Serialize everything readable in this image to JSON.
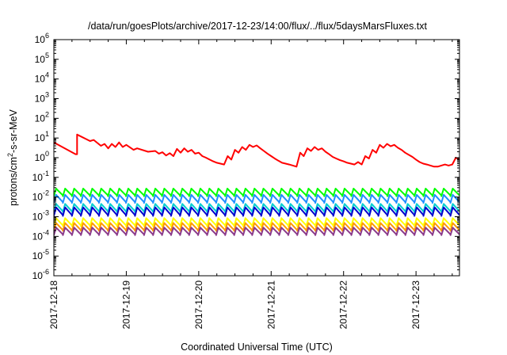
{
  "chart_data": {
    "type": "line",
    "title": "/data/run/goesPlots/archive/2017-12-23/14:00/flux/../flux/5daysMarsFluxes.txt",
    "xlabel": "Coordinated Universal Time (UTC)",
    "ylabel_parts": {
      "base": "protons/cm",
      "sup": "2",
      "rest": "-s-sr-MeV"
    },
    "x_ticks": [
      "2017-12-18",
      "2017-12-19",
      "2017-12-20",
      "2017-12-21",
      "2017-12-22",
      "2017-12-23"
    ],
    "xlim": [
      0,
      5.6
    ],
    "y_scale": "log",
    "ylim": [
      1e-06,
      1000000.0
    ],
    "y_tick_exponents": [
      -6,
      -5,
      -4,
      -3,
      -2,
      -1,
      0,
      1,
      2,
      3,
      4,
      5,
      6
    ],
    "grid": false,
    "legend": "none",
    "series": [
      {
        "color": "#ff0000",
        "width": 2,
        "x": [
          0,
          0.3,
          0.32,
          0.32,
          0.5,
          0.55,
          0.65,
          0.7,
          0.75,
          0.8,
          0.85,
          0.9,
          0.95,
          1.0,
          1.1,
          1.15,
          1.3,
          1.4,
          1.45,
          1.5,
          1.55,
          1.6,
          1.65,
          1.7,
          1.75,
          1.8,
          1.85,
          1.9,
          1.95,
          2.0,
          2.05,
          2.1,
          2.15,
          2.2,
          2.25,
          2.3,
          2.35,
          2.4,
          2.45,
          2.5,
          2.55,
          2.6,
          2.65,
          2.7,
          2.75,
          2.8,
          2.85,
          2.9,
          2.95,
          3.0,
          3.05,
          3.1,
          3.15,
          3.2,
          3.25,
          3.3,
          3.35,
          3.4,
          3.45,
          3.5,
          3.55,
          3.6,
          3.65,
          3.7,
          3.75,
          3.8,
          3.85,
          3.9,
          3.95,
          4.0,
          4.05,
          4.1,
          4.15,
          4.2,
          4.25,
          4.3,
          4.35,
          4.4,
          4.45,
          4.5,
          4.55,
          4.6,
          4.65,
          4.7,
          4.75,
          4.8,
          4.85,
          4.9,
          4.95,
          5.0,
          5.05,
          5.1,
          5.15,
          5.2,
          5.25,
          5.3,
          5.35,
          5.4,
          5.45,
          5.5,
          5.55,
          5.6
        ],
        "y": [
          6,
          1.5,
          1.5,
          15,
          7,
          8,
          4,
          5,
          3,
          5,
          3.5,
          6,
          3.5,
          4.5,
          2.5,
          3,
          2,
          2.2,
          1.6,
          1.9,
          1.3,
          1.7,
          1.2,
          2.8,
          1.8,
          3,
          2,
          2.5,
          1.6,
          1.8,
          1.2,
          1,
          0.8,
          0.65,
          0.55,
          0.5,
          0.45,
          1.2,
          0.8,
          2.5,
          1.8,
          3.5,
          2.5,
          4.5,
          3.5,
          4.2,
          3,
          2.2,
          1.6,
          1.2,
          0.9,
          0.7,
          0.55,
          0.5,
          0.45,
          0.4,
          0.35,
          1.8,
          1.2,
          3,
          2.2,
          3.5,
          2.5,
          3,
          2,
          1.5,
          1.1,
          0.9,
          0.75,
          0.65,
          0.55,
          0.5,
          0.45,
          0.6,
          0.45,
          1.2,
          0.9,
          2.5,
          1.8,
          4.5,
          3.2,
          5,
          3.8,
          4.5,
          3.2,
          2.5,
          1.8,
          1.4,
          1.1,
          0.8,
          0.6,
          0.5,
          0.45,
          0.4,
          0.35,
          0.35,
          0.4,
          0.45,
          0.4,
          0.45,
          1,
          0.8
        ]
      },
      {
        "color": "#00ff00",
        "width": 2,
        "sawtooth": {
          "teeth": 45,
          "low": 0.011,
          "high": 0.027
        }
      },
      {
        "color": "#1e90ff",
        "width": 2,
        "sawtooth": {
          "teeth": 45,
          "low": 0.005,
          "high": 0.013
        }
      },
      {
        "color": "#00ced1",
        "width": 2,
        "sawtooth": {
          "teeth": 45,
          "low": 0.0017,
          "high": 0.0045
        }
      },
      {
        "color": "#0000cd",
        "width": 2,
        "sawtooth": {
          "teeth": 45,
          "low": 0.0011,
          "high": 0.003
        }
      },
      {
        "color": "#ffff00",
        "width": 2,
        "sawtooth": {
          "teeth": 45,
          "low": 0.00033,
          "high": 0.00085
        }
      },
      {
        "color": "#ff9900",
        "width": 2,
        "sawtooth": {
          "teeth": 45,
          "low": 0.00019,
          "high": 0.00048
        }
      },
      {
        "color": "#8b3a8b",
        "width": 2,
        "sawtooth": {
          "teeth": 45,
          "low": 0.000115,
          "high": 0.00028
        }
      }
    ]
  }
}
